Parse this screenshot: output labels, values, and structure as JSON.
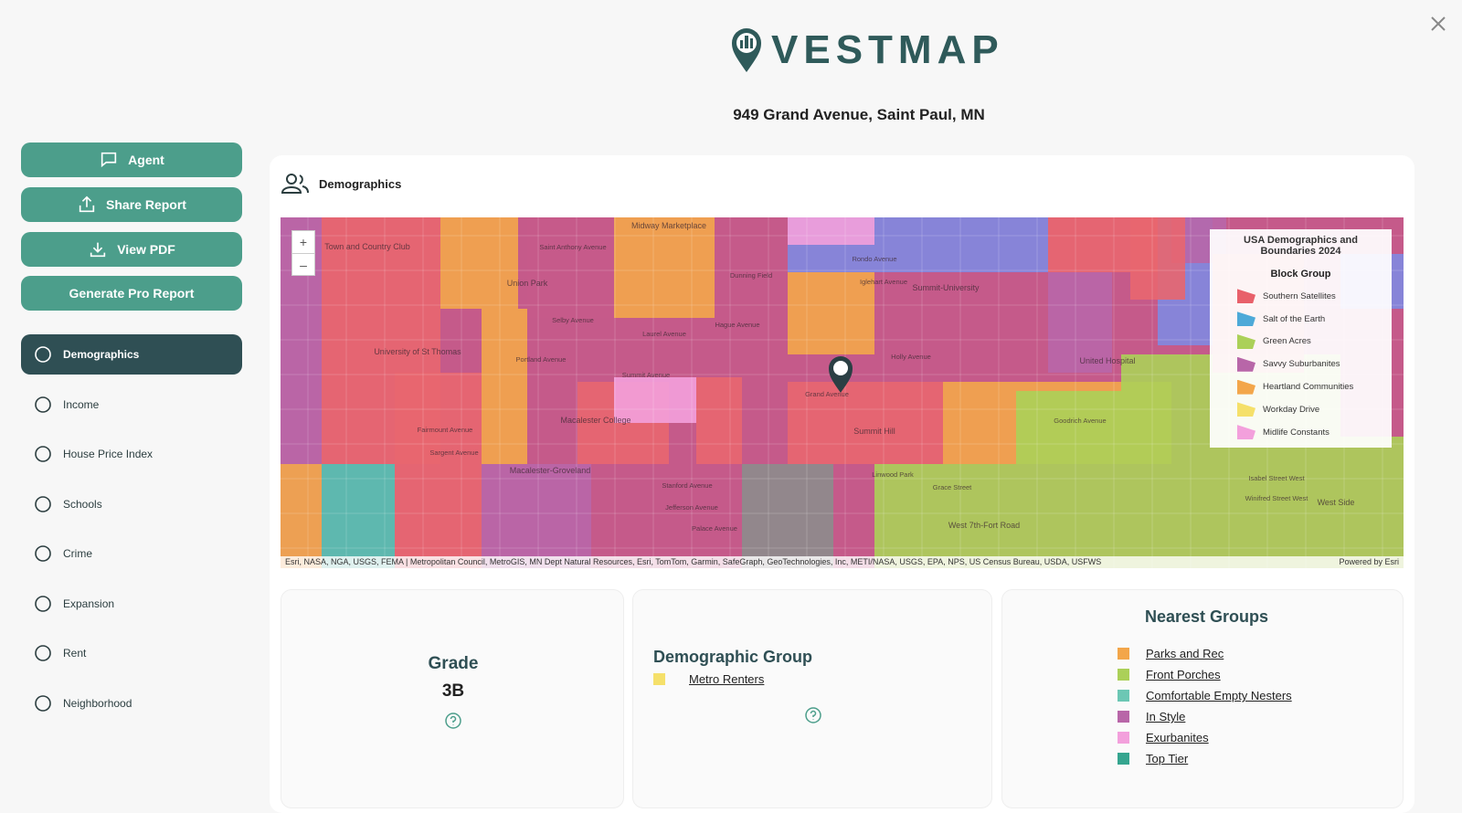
{
  "header": {
    "logo": "VESTMAP",
    "address": "949 Grand Avenue, Saint Paul, MN"
  },
  "actions": [
    "Agent",
    "Share Report",
    "View PDF",
    "Generate Pro Report"
  ],
  "nav": [
    "Demographics",
    "Income",
    "House Price Index",
    "Schools",
    "Crime",
    "Expansion",
    "Rent",
    "Neighborhood"
  ],
  "panel": {
    "title": "Demographics",
    "map": {
      "zoom_in": "+",
      "zoom_out": "–",
      "legend": {
        "title": "USA Demographics and Boundaries 2024",
        "subtitle": "Block Group",
        "items": [
          "Southern Satellites",
          "Salt of the Earth",
          "Green Acres",
          "Savvy Suburbanites",
          "Heartland Communities",
          "Workday Drive",
          "Midlife Constants"
        ]
      },
      "labels": [
        "Union Park",
        "Midway Marketplace",
        "Town and Country Club",
        "Summit-University",
        "University of St Thomas",
        "Macalester College",
        "Macalester-Groveland",
        "Summit Hill",
        "West 7th-Fort Road",
        "United Hospital",
        "West Side",
        "Grand Avenue",
        "Summit Avenue",
        "Selby Avenue",
        "Laurel Avenue",
        "Portland Avenue",
        "Saint Anthony Avenue",
        "Rondo Avenue",
        "Iglehart Avenue",
        "Hague Avenue",
        "Holly Avenue",
        "Goodrich Avenue",
        "Fairmount Avenue",
        "Sargent Avenue",
        "Stanford Avenue",
        "Jefferson Avenue",
        "Palace Avenue",
        "Grace Street",
        "Isabel Street West",
        "Winifred Street West",
        "Dunning Field",
        "Linwood Park"
      ],
      "attribution": "Esri, NASA, NGA, USGS, FEMA | Metropolitan Council, MetroGIS, MN Dept Natural Resources, Esri, TomTom, Garmin, SafeGraph, GeoTechnologies, Inc, METI/NASA, USGS, EPA, NPS, US Census Bureau, USDA, USFWS",
      "powered": "Powered by Esri"
    },
    "grade": {
      "title": "Grade",
      "value": "3B"
    },
    "group": {
      "title": "Demographic Group",
      "name": "Metro Renters"
    },
    "nearest": {
      "title": "Nearest Groups",
      "items": [
        "Parks and Rec",
        "Front Porches",
        "Comfortable Empty Nesters",
        "In Style",
        "Exurbanites",
        "Top Tier"
      ]
    }
  }
}
